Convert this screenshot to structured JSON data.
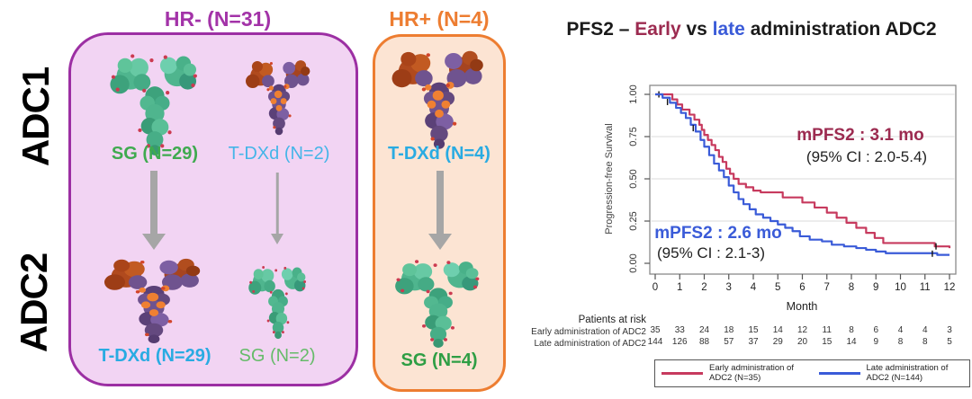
{
  "left_panel": {
    "row_labels": [
      "ADC1",
      "ADC2"
    ],
    "groups": [
      {
        "title": "HR- (N=31)",
        "title_color": "#a333a8",
        "fill": "#f2d4f3",
        "border": "#9c2fa3",
        "columns": [
          {
            "adc1": {
              "molecule": "SG",
              "label": "SG (N=29)",
              "label_color": "#3faa4f",
              "bold": true
            },
            "arrow": "thick",
            "adc2": {
              "molecule": "T-DXd",
              "label": "T-DXd (N=29)",
              "label_color": "#29abe2",
              "bold": true
            }
          },
          {
            "adc1": {
              "molecule": "T-DXd",
              "label": "T-DXd (N=2)",
              "label_color": "#45b5e8",
              "bold": false
            },
            "arrow": "thin",
            "adc2": {
              "molecule": "SG",
              "label": "SG (N=2)",
              "label_color": "#66bb6a",
              "bold": false
            }
          }
        ]
      },
      {
        "title": "HR+ (N=4)",
        "title_color": "#ed7d31",
        "fill": "#fce4d3",
        "border": "#ed7d31",
        "columns": [
          {
            "adc1": {
              "molecule": "T-DXd",
              "label": "T-DXd (N=4)",
              "label_color": "#29abe2",
              "bold": true
            },
            "arrow": "thick",
            "adc2": {
              "molecule": "SG",
              "label": "SG (N=4)",
              "label_color": "#2e9e44",
              "bold": true
            }
          }
        ]
      }
    ]
  },
  "chart": {
    "title_parts": {
      "prefix": "PFS2 – ",
      "early": "Early",
      "vs": " vs ",
      "late": "late",
      "suffix": " administration ADC2"
    },
    "early_color": "#9c2b50",
    "late_color": "#3a5bd8"
  },
  "chart_data": {
    "type": "line",
    "subtype": "kaplan-meier-step",
    "title": "PFS2 – Early vs late administration ADC2",
    "xlabel": "Month",
    "ylabel": "Progression-free Survival",
    "xlim": [
      0,
      12
    ],
    "ylim": [
      0,
      1
    ],
    "x_ticks": [
      0,
      1,
      2,
      3,
      4,
      5,
      6,
      7,
      8,
      9,
      10,
      11,
      12
    ],
    "y_ticks": [
      "0.00",
      "0.25",
      "0.50",
      "0.75",
      "1.00"
    ],
    "grid": "horizontal",
    "series": [
      {
        "name": "Early administration of ADC2 (N=35)",
        "color": "#c73a5e",
        "median_label": "mPFS2 : 3.1 mo",
        "ci_label": "(95% CI : 2.0-5.4)",
        "points": [
          [
            0,
            1.0
          ],
          [
            0.7,
            0.97
          ],
          [
            0.9,
            0.94
          ],
          [
            1.1,
            0.91
          ],
          [
            1.4,
            0.88
          ],
          [
            1.6,
            0.85
          ],
          [
            1.8,
            0.82
          ],
          [
            1.9,
            0.79
          ],
          [
            2.0,
            0.76
          ],
          [
            2.15,
            0.73
          ],
          [
            2.3,
            0.7
          ],
          [
            2.45,
            0.67
          ],
          [
            2.6,
            0.63
          ],
          [
            2.75,
            0.6
          ],
          [
            2.9,
            0.56
          ],
          [
            3.05,
            0.53
          ],
          [
            3.2,
            0.5
          ],
          [
            3.4,
            0.47
          ],
          [
            3.7,
            0.45
          ],
          [
            4.0,
            0.43
          ],
          [
            4.3,
            0.42
          ],
          [
            5.2,
            0.39
          ],
          [
            6.0,
            0.36
          ],
          [
            6.5,
            0.33
          ],
          [
            7.0,
            0.3
          ],
          [
            7.4,
            0.27
          ],
          [
            7.8,
            0.24
          ],
          [
            8.2,
            0.21
          ],
          [
            8.6,
            0.18
          ],
          [
            8.95,
            0.15
          ],
          [
            9.3,
            0.12
          ],
          [
            11.4,
            0.1
          ],
          [
            12,
            0.09
          ]
        ],
        "censors": [
          [
            0.15,
            1.0
          ],
          [
            11.45,
            0.1
          ]
        ]
      },
      {
        "name": "Late administration of ADC2 (N=144)",
        "color": "#3a5bd8",
        "median_label": "mPFS2 : 2.6 mo",
        "ci_label": "(95% CI : 2.1-3)",
        "points": [
          [
            0,
            1.0
          ],
          [
            0.3,
            0.98
          ],
          [
            0.6,
            0.95
          ],
          [
            0.85,
            0.92
          ],
          [
            1.05,
            0.89
          ],
          [
            1.25,
            0.86
          ],
          [
            1.45,
            0.82
          ],
          [
            1.65,
            0.78
          ],
          [
            1.85,
            0.73
          ],
          [
            2.0,
            0.69
          ],
          [
            2.2,
            0.64
          ],
          [
            2.4,
            0.59
          ],
          [
            2.6,
            0.55
          ],
          [
            2.8,
            0.51
          ],
          [
            3.0,
            0.46
          ],
          [
            3.2,
            0.42
          ],
          [
            3.4,
            0.38
          ],
          [
            3.6,
            0.35
          ],
          [
            3.85,
            0.32
          ],
          [
            4.1,
            0.29
          ],
          [
            4.4,
            0.27
          ],
          [
            4.7,
            0.25
          ],
          [
            5.0,
            0.23
          ],
          [
            5.3,
            0.21
          ],
          [
            5.6,
            0.19
          ],
          [
            5.9,
            0.16
          ],
          [
            6.3,
            0.14
          ],
          [
            6.8,
            0.13
          ],
          [
            7.2,
            0.11
          ],
          [
            7.7,
            0.1
          ],
          [
            8.2,
            0.09
          ],
          [
            8.6,
            0.08
          ],
          [
            9.0,
            0.07
          ],
          [
            9.4,
            0.06
          ],
          [
            11.5,
            0.05
          ],
          [
            12,
            0.05
          ]
        ],
        "censors": [
          [
            0.5,
            0.955
          ],
          [
            1.55,
            0.8
          ],
          [
            11.3,
            0.057
          ]
        ]
      }
    ],
    "risk_table": {
      "header": "Patients at risk",
      "rows": [
        {
          "label": "Early administration of ADC2",
          "values": [
            35,
            33,
            24,
            18,
            15,
            14,
            12,
            11,
            8,
            6,
            4,
            4,
            3
          ]
        },
        {
          "label": "Late administration of ADC2",
          "values": [
            144,
            126,
            88,
            57,
            37,
            29,
            20,
            15,
            14,
            9,
            8,
            8,
            5
          ]
        }
      ]
    },
    "legend": {
      "position": "bottom",
      "entries": [
        {
          "line1": "Early administration of",
          "line2": "ADC2 (N=35)",
          "color": "#c73a5e"
        },
        {
          "line1": "Late administration of",
          "line2": "ADC2 (N=144)",
          "color": "#3a5bd8"
        }
      ]
    }
  }
}
